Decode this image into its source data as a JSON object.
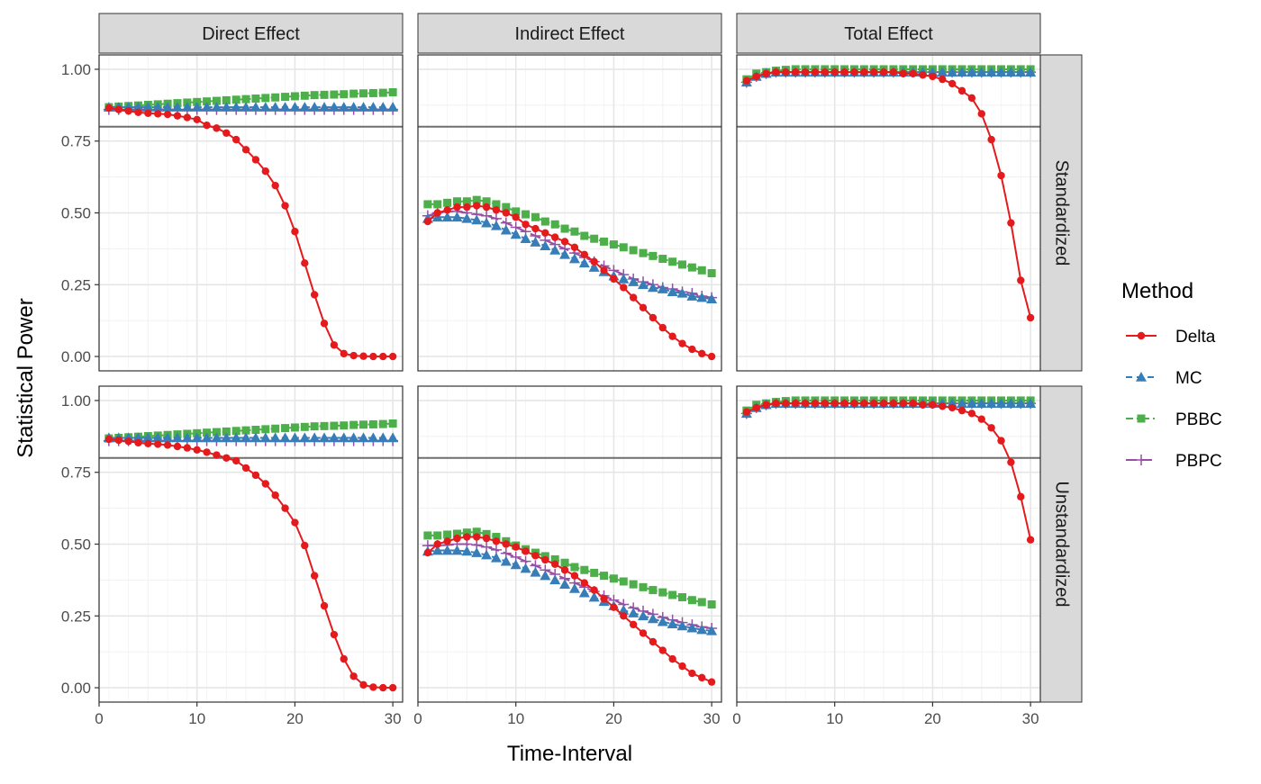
{
  "chart_data": {
    "type": "line",
    "title": "",
    "xlabel": "Time-Interval",
    "ylabel": "Statistical Power",
    "xlim": [
      0,
      31
    ],
    "ylim": [
      -0.05,
      1.05
    ],
    "x_ticks": [
      0,
      10,
      20,
      30
    ],
    "y_ticks": [
      0.0,
      0.25,
      0.5,
      0.75,
      1.0
    ],
    "y_tick_labels": [
      "0.00",
      "0.25",
      "0.50",
      "0.75",
      "1.00"
    ],
    "reference_line": 0.8,
    "grid": true,
    "legend": {
      "title": "Method",
      "position": "right",
      "entries": [
        {
          "name": "Delta",
          "color": "#e41a1c",
          "marker": "circle",
          "dash": "solid"
        },
        {
          "name": "MC",
          "color": "#377eb8",
          "marker": "triangle",
          "dash": "dashed"
        },
        {
          "name": "PBBC",
          "color": "#4daf4a",
          "marker": "square",
          "dash": "dashdot"
        },
        {
          "name": "PBPC",
          "color": "#984ea3",
          "marker": "plus",
          "dash": "longdash"
        }
      ]
    },
    "col_labels": [
      "Direct Effect",
      "Indirect Effect",
      "Total Effect"
    ],
    "row_labels": [
      "Standardized",
      "Unstandardized"
    ],
    "x": [
      1,
      2,
      3,
      4,
      5,
      6,
      7,
      8,
      9,
      10,
      11,
      12,
      13,
      14,
      15,
      16,
      17,
      18,
      19,
      20,
      21,
      22,
      23,
      24,
      25,
      26,
      27,
      28,
      29,
      30
    ],
    "panels": [
      {
        "row": 0,
        "col": 0,
        "series": [
          {
            "name": "Delta",
            "values": [
              0.865,
              0.86,
              0.855,
              0.85,
              0.847,
              0.845,
              0.843,
              0.838,
              0.832,
              0.825,
              0.805,
              0.795,
              0.778,
              0.755,
              0.72,
              0.685,
              0.645,
              0.595,
              0.525,
              0.435,
              0.325,
              0.215,
              0.115,
              0.04,
              0.01,
              0.003,
              0.001,
              0.0,
              0.0,
              0.0
            ]
          },
          {
            "name": "MC",
            "values": [
              0.868,
              0.868,
              0.868,
              0.868,
              0.868,
              0.868,
              0.868,
              0.868,
              0.868,
              0.868,
              0.868,
              0.868,
              0.868,
              0.868,
              0.868,
              0.868,
              0.868,
              0.868,
              0.868,
              0.868,
              0.868,
              0.868,
              0.868,
              0.868,
              0.868,
              0.868,
              0.868,
              0.868,
              0.868,
              0.868
            ]
          },
          {
            "name": "PBBC",
            "values": [
              0.868,
              0.87,
              0.872,
              0.874,
              0.876,
              0.878,
              0.88,
              0.882,
              0.884,
              0.886,
              0.888,
              0.89,
              0.892,
              0.894,
              0.896,
              0.898,
              0.9,
              0.902,
              0.904,
              0.906,
              0.908,
              0.91,
              0.911,
              0.912,
              0.913,
              0.915,
              0.916,
              0.917,
              0.918,
              0.92
            ]
          },
          {
            "name": "PBPC",
            "values": [
              0.86,
              0.86,
              0.86,
              0.86,
              0.86,
              0.86,
              0.86,
              0.86,
              0.86,
              0.86,
              0.86,
              0.86,
              0.86,
              0.86,
              0.86,
              0.86,
              0.86,
              0.86,
              0.86,
              0.86,
              0.86,
              0.86,
              0.86,
              0.86,
              0.86,
              0.86,
              0.86,
              0.86,
              0.86,
              0.86
            ]
          }
        ]
      },
      {
        "row": 0,
        "col": 1,
        "series": [
          {
            "name": "Delta",
            "values": [
              0.47,
              0.5,
              0.51,
              0.52,
              0.52,
              0.525,
              0.52,
              0.51,
              0.5,
              0.485,
              0.46,
              0.445,
              0.43,
              0.415,
              0.4,
              0.38,
              0.355,
              0.33,
              0.3,
              0.27,
              0.24,
              0.205,
              0.17,
              0.135,
              0.1,
              0.07,
              0.045,
              0.025,
              0.01,
              0.0
            ]
          },
          {
            "name": "MC",
            "values": [
              0.48,
              0.485,
              0.485,
              0.485,
              0.48,
              0.475,
              0.465,
              0.455,
              0.44,
              0.425,
              0.41,
              0.398,
              0.385,
              0.37,
              0.355,
              0.34,
              0.325,
              0.31,
              0.295,
              0.28,
              0.27,
              0.26,
              0.25,
              0.24,
              0.235,
              0.225,
              0.22,
              0.21,
              0.205,
              0.2
            ]
          },
          {
            "name": "PBBC",
            "values": [
              0.53,
              0.53,
              0.535,
              0.54,
              0.54,
              0.545,
              0.54,
              0.53,
              0.52,
              0.505,
              0.495,
              0.485,
              0.47,
              0.46,
              0.445,
              0.435,
              0.42,
              0.41,
              0.4,
              0.39,
              0.38,
              0.37,
              0.36,
              0.35,
              0.34,
              0.33,
              0.32,
              0.31,
              0.3,
              0.29
            ]
          },
          {
            "name": "PBPC",
            "values": [
              0.49,
              0.5,
              0.505,
              0.505,
              0.5,
              0.495,
              0.49,
              0.48,
              0.465,
              0.45,
              0.435,
              0.42,
              0.405,
              0.39,
              0.375,
              0.36,
              0.345,
              0.33,
              0.315,
              0.3,
              0.285,
              0.27,
              0.26,
              0.25,
              0.24,
              0.235,
              0.225,
              0.22,
              0.21,
              0.205
            ]
          }
        ]
      },
      {
        "row": 0,
        "col": 2,
        "series": [
          {
            "name": "Delta",
            "values": [
              0.96,
              0.975,
              0.985,
              0.99,
              0.99,
              0.99,
              0.99,
              0.99,
              0.99,
              0.99,
              0.99,
              0.99,
              0.99,
              0.99,
              0.99,
              0.99,
              0.985,
              0.985,
              0.98,
              0.975,
              0.965,
              0.95,
              0.925,
              0.9,
              0.845,
              0.755,
              0.63,
              0.465,
              0.265,
              0.135
            ]
          },
          {
            "name": "MC",
            "values": [
              0.955,
              0.975,
              0.985,
              0.99,
              0.99,
              0.99,
              0.99,
              0.99,
              0.99,
              0.99,
              0.99,
              0.99,
              0.99,
              0.99,
              0.99,
              0.99,
              0.99,
              0.99,
              0.99,
              0.99,
              0.99,
              0.99,
              0.99,
              0.99,
              0.99,
              0.99,
              0.99,
              0.99,
              0.99,
              0.99
            ]
          },
          {
            "name": "PBBC",
            "values": [
              0.965,
              0.985,
              0.99,
              0.995,
              0.998,
              1.0,
              1.0,
              1.0,
              1.0,
              1.0,
              1.0,
              1.0,
              1.0,
              1.0,
              1.0,
              1.0,
              1.0,
              1.0,
              1.0,
              1.0,
              1.0,
              1.0,
              1.0,
              1.0,
              1.0,
              1.0,
              1.0,
              1.0,
              1.0,
              1.0
            ]
          },
          {
            "name": "PBPC",
            "values": [
              0.955,
              0.975,
              0.985,
              0.99,
              0.99,
              0.99,
              0.99,
              0.99,
              0.99,
              0.99,
              0.99,
              0.99,
              0.99,
              0.99,
              0.99,
              0.99,
              0.99,
              0.99,
              0.99,
              0.99,
              0.99,
              0.99,
              0.99,
              0.99,
              0.99,
              0.99,
              0.99,
              0.99,
              0.99,
              0.99
            ]
          }
        ]
      },
      {
        "row": 1,
        "col": 0,
        "series": [
          {
            "name": "Delta",
            "values": [
              0.865,
              0.862,
              0.858,
              0.853,
              0.85,
              0.848,
              0.845,
              0.84,
              0.835,
              0.828,
              0.82,
              0.81,
              0.8,
              0.79,
              0.765,
              0.74,
              0.71,
              0.67,
              0.625,
              0.575,
              0.495,
              0.39,
              0.285,
              0.185,
              0.1,
              0.04,
              0.01,
              0.002,
              0.0,
              0.0
            ]
          },
          {
            "name": "MC",
            "values": [
              0.87,
              0.87,
              0.87,
              0.87,
              0.87,
              0.87,
              0.87,
              0.87,
              0.87,
              0.87,
              0.87,
              0.87,
              0.87,
              0.87,
              0.87,
              0.87,
              0.87,
              0.87,
              0.87,
              0.87,
              0.87,
              0.87,
              0.87,
              0.87,
              0.87,
              0.87,
              0.87,
              0.87,
              0.87,
              0.87
            ]
          },
          {
            "name": "PBBC",
            "values": [
              0.868,
              0.87,
              0.872,
              0.874,
              0.876,
              0.878,
              0.88,
              0.882,
              0.884,
              0.886,
              0.888,
              0.89,
              0.892,
              0.894,
              0.896,
              0.898,
              0.9,
              0.902,
              0.904,
              0.906,
              0.908,
              0.91,
              0.911,
              0.912,
              0.913,
              0.915,
              0.916,
              0.917,
              0.918,
              0.92
            ]
          },
          {
            "name": "PBPC",
            "values": [
              0.86,
              0.86,
              0.86,
              0.86,
              0.86,
              0.86,
              0.86,
              0.86,
              0.86,
              0.86,
              0.86,
              0.86,
              0.86,
              0.86,
              0.86,
              0.86,
              0.86,
              0.86,
              0.86,
              0.86,
              0.86,
              0.86,
              0.86,
              0.86,
              0.86,
              0.86,
              0.86,
              0.86,
              0.86,
              0.86
            ]
          }
        ]
      },
      {
        "row": 1,
        "col": 1,
        "series": [
          {
            "name": "Delta",
            "values": [
              0.47,
              0.5,
              0.51,
              0.52,
              0.525,
              0.525,
              0.52,
              0.51,
              0.5,
              0.49,
              0.475,
              0.46,
              0.445,
              0.43,
              0.41,
              0.39,
              0.365,
              0.34,
              0.31,
              0.28,
              0.25,
              0.22,
              0.19,
              0.16,
              0.13,
              0.1,
              0.075,
              0.05,
              0.035,
              0.02
            ]
          },
          {
            "name": "MC",
            "values": [
              0.475,
              0.478,
              0.478,
              0.478,
              0.475,
              0.47,
              0.462,
              0.452,
              0.44,
              0.428,
              0.415,
              0.402,
              0.39,
              0.375,
              0.36,
              0.345,
              0.33,
              0.315,
              0.3,
              0.285,
              0.27,
              0.26,
              0.25,
              0.24,
              0.23,
              0.222,
              0.215,
              0.208,
              0.202,
              0.198
            ]
          },
          {
            "name": "PBBC",
            "values": [
              0.53,
              0.53,
              0.533,
              0.536,
              0.54,
              0.543,
              0.535,
              0.525,
              0.51,
              0.495,
              0.482,
              0.47,
              0.458,
              0.447,
              0.435,
              0.42,
              0.41,
              0.4,
              0.39,
              0.38,
              0.37,
              0.36,
              0.35,
              0.34,
              0.332,
              0.323,
              0.315,
              0.305,
              0.298,
              0.29
            ]
          },
          {
            "name": "PBPC",
            "values": [
              0.495,
              0.495,
              0.497,
              0.5,
              0.5,
              0.497,
              0.49,
              0.48,
              0.468,
              0.455,
              0.44,
              0.425,
              0.41,
              0.395,
              0.38,
              0.365,
              0.35,
              0.335,
              0.32,
              0.305,
              0.29,
              0.278,
              0.267,
              0.256,
              0.245,
              0.236,
              0.227,
              0.219,
              0.212,
              0.207
            ]
          }
        ]
      },
      {
        "row": 1,
        "col": 2,
        "series": [
          {
            "name": "Delta",
            "values": [
              0.96,
              0.975,
              0.985,
              0.99,
              0.99,
              0.99,
              0.99,
              0.99,
              0.99,
              0.99,
              0.99,
              0.99,
              0.99,
              0.99,
              0.99,
              0.99,
              0.99,
              0.99,
              0.985,
              0.985,
              0.98,
              0.975,
              0.965,
              0.955,
              0.935,
              0.905,
              0.86,
              0.785,
              0.665,
              0.515
            ]
          },
          {
            "name": "MC",
            "values": [
              0.955,
              0.975,
              0.985,
              0.99,
              0.99,
              0.99,
              0.99,
              0.99,
              0.99,
              0.99,
              0.99,
              0.99,
              0.99,
              0.99,
              0.99,
              0.99,
              0.99,
              0.99,
              0.99,
              0.99,
              0.99,
              0.99,
              0.99,
              0.99,
              0.99,
              0.99,
              0.99,
              0.99,
              0.99,
              0.99
            ]
          },
          {
            "name": "PBBC",
            "values": [
              0.965,
              0.985,
              0.99,
              0.995,
              0.998,
              1.0,
              1.0,
              1.0,
              1.0,
              1.0,
              1.0,
              1.0,
              1.0,
              1.0,
              1.0,
              1.0,
              1.0,
              1.0,
              1.0,
              1.0,
              1.0,
              1.0,
              1.0,
              1.0,
              1.0,
              1.0,
              1.0,
              1.0,
              1.0,
              1.0
            ]
          },
          {
            "name": "PBPC",
            "values": [
              0.955,
              0.975,
              0.985,
              0.99,
              0.99,
              0.99,
              0.99,
              0.99,
              0.99,
              0.99,
              0.99,
              0.99,
              0.99,
              0.99,
              0.99,
              0.99,
              0.99,
              0.99,
              0.99,
              0.99,
              0.99,
              0.99,
              0.99,
              0.99,
              0.99,
              0.99,
              0.99,
              0.99,
              0.99,
              0.99
            ]
          }
        ]
      }
    ]
  }
}
